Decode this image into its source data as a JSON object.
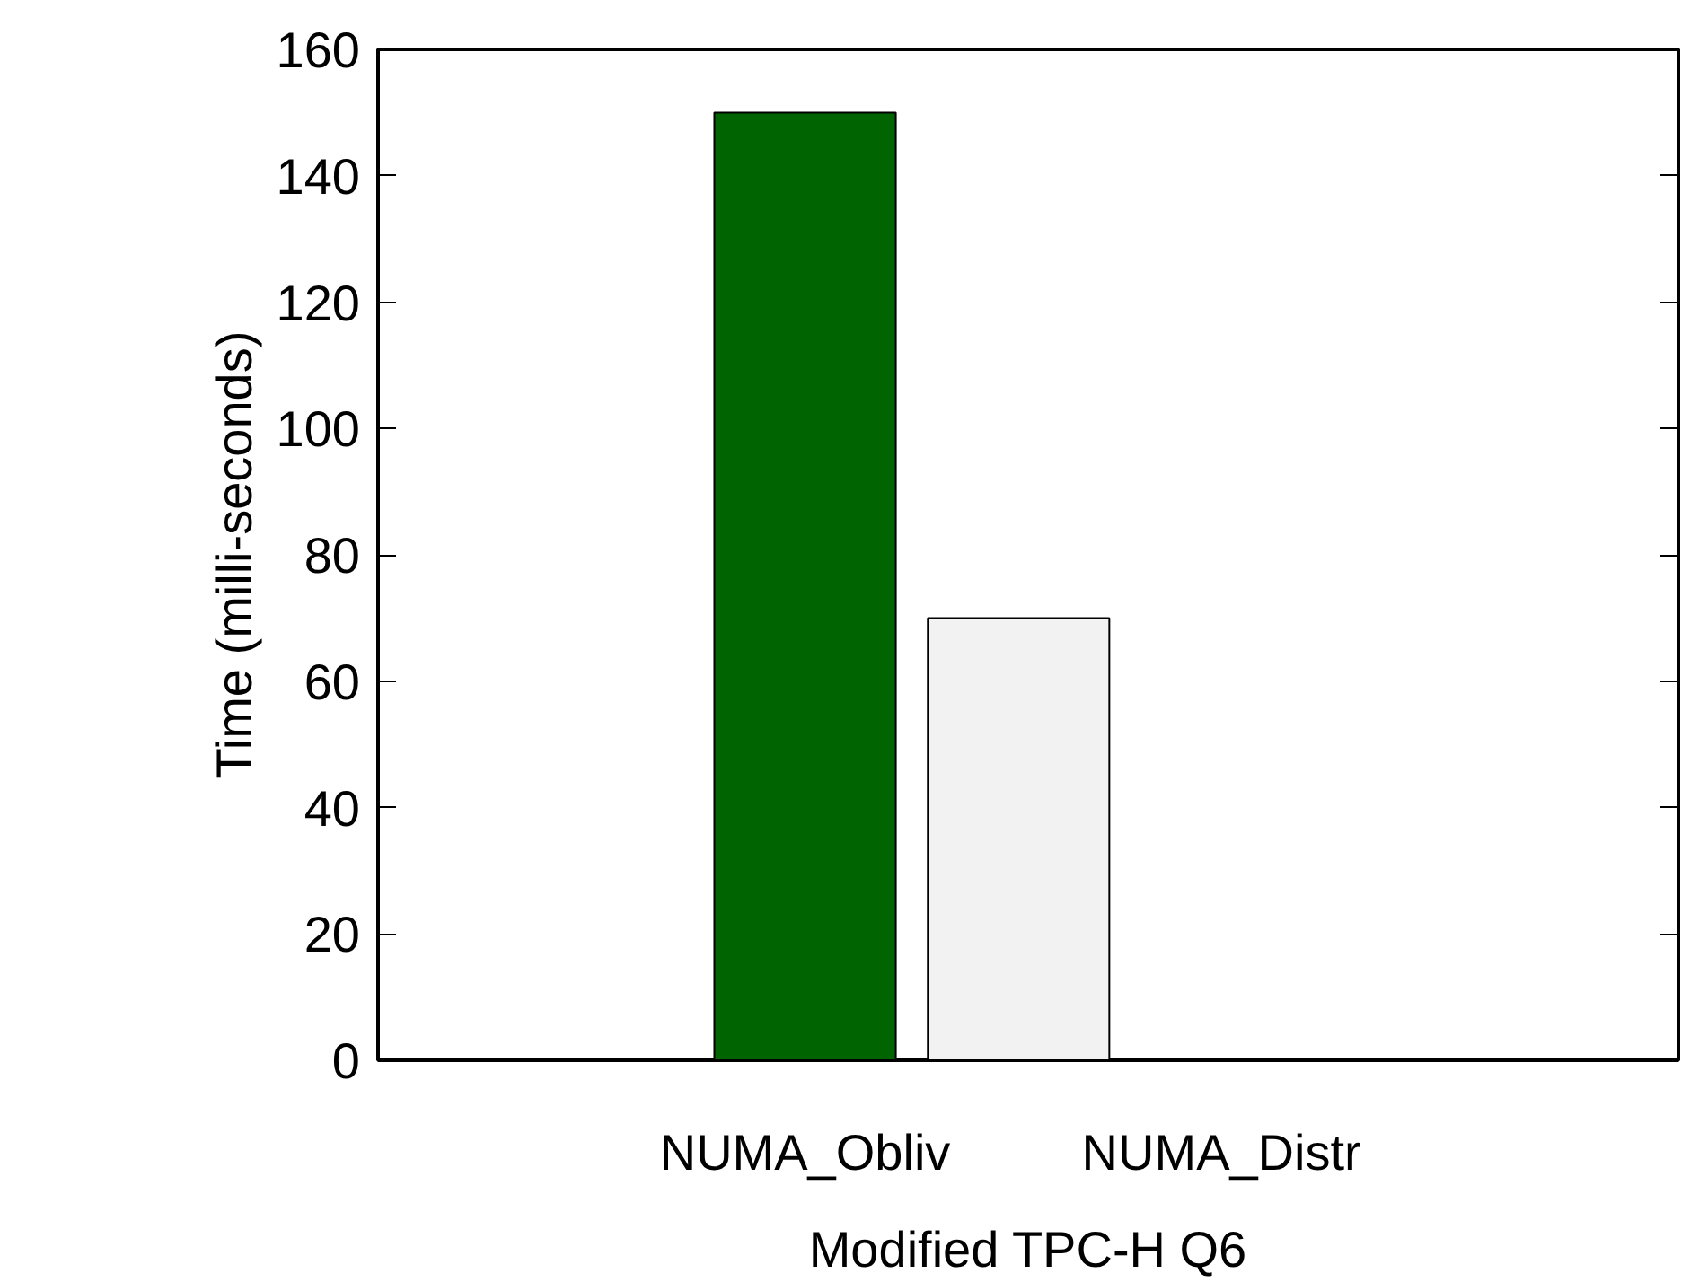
{
  "chart_data": {
    "type": "bar",
    "categories": [
      "NUMA_Obliv",
      "NUMA_Distr"
    ],
    "colors": [
      "#006400",
      "#f2f2f2"
    ],
    "values": [
      150,
      70
    ],
    "ylabel": "Time (milli-seconds)",
    "xlabel": "Modified TPC-H Q6",
    "ylim": [
      0,
      160
    ],
    "yticks": [
      0,
      20,
      40,
      60,
      80,
      100,
      120,
      140,
      160
    ],
    "grid": false
  }
}
